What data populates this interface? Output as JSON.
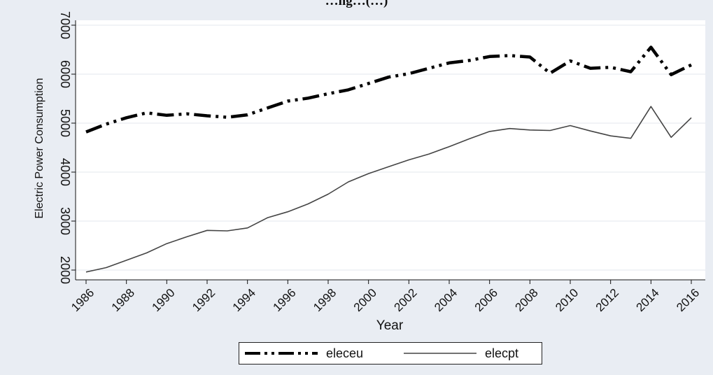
{
  "chart_data": {
    "type": "line",
    "title": "…ng…(…)",
    "xlabel": "Year",
    "ylabel": "Electric Power Consumption",
    "xlim": [
      1986,
      2016
    ],
    "ylim": [
      1800,
      7100
    ],
    "x_ticks": [
      1986,
      1988,
      1990,
      1992,
      1994,
      1996,
      1998,
      2000,
      2002,
      2004,
      2006,
      2008,
      2010,
      2012,
      2014,
      2016
    ],
    "y_ticks": [
      2000,
      3000,
      4000,
      5000,
      6000,
      7000
    ],
    "grid": true,
    "legend_position": "bottom",
    "x": [
      1986,
      1987,
      1988,
      1989,
      1990,
      1991,
      1992,
      1993,
      1994,
      1995,
      1996,
      1997,
      1998,
      1999,
      2000,
      2001,
      2002,
      2003,
      2004,
      2005,
      2006,
      2007,
      2008,
      2009,
      2010,
      2011,
      2012,
      2013,
      2014,
      2015,
      2016
    ],
    "series": [
      {
        "name": "eleceu",
        "style": "dash-dot",
        "color": "#000000",
        "values": [
          4820,
          4980,
          5110,
          5210,
          5160,
          5190,
          5150,
          5120,
          5170,
          5310,
          5450,
          5510,
          5600,
          5680,
          5810,
          5940,
          6010,
          6120,
          6230,
          6280,
          6360,
          6380,
          6350,
          6020,
          6270,
          6120,
          6140,
          6050,
          6550,
          5990,
          6190
        ]
      },
      {
        "name": "elecpt",
        "style": "solid",
        "color": "#444444",
        "values": [
          1960,
          2050,
          2200,
          2350,
          2540,
          2680,
          2810,
          2800,
          2860,
          3070,
          3190,
          3350,
          3550,
          3800,
          3970,
          4110,
          4250,
          4370,
          4520,
          4680,
          4830,
          4890,
          4860,
          4850,
          4950,
          4840,
          4740,
          4690,
          5340,
          4710,
          5110
        ]
      }
    ]
  }
}
